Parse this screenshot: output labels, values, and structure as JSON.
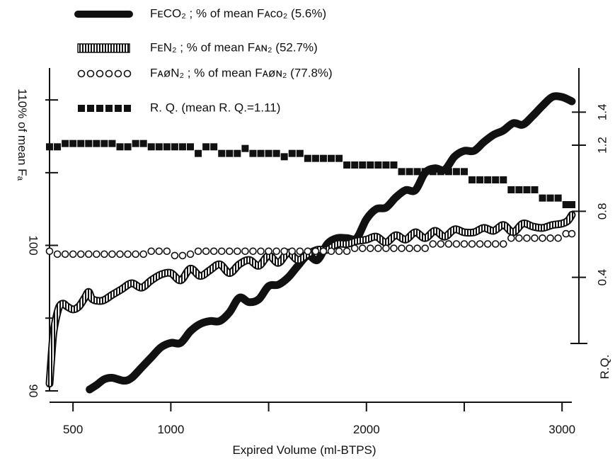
{
  "chart_data": {
    "type": "line",
    "xlabel": "Expired Volume (ml-BTPS)",
    "ylabel": "110% of mean Fₐ",
    "y2label": "R.Q.",
    "xlim": [
      380,
      3050
    ],
    "ylim": [
      90,
      112
    ],
    "y2lim": [
      0,
      1.65
    ],
    "x_ticks": [
      500,
      1000,
      1500,
      2000,
      2500,
      3000
    ],
    "x_tick_labels": [
      "500",
      "1000",
      "",
      "2000",
      "",
      "3000"
    ],
    "y_ticks": [
      90,
      95,
      100,
      105,
      110
    ],
    "y_tick_labels": [
      "90",
      "",
      "100",
      "",
      ""
    ],
    "y2_ticks": [
      0.4,
      0.8,
      1.2,
      1.4
    ],
    "y2_tick_labels": [
      "0.4",
      "0.8",
      "1.2",
      "1.4"
    ],
    "legend": [
      {
        "style": "thick-black",
        "label": "FᴇCO₂ ; % of mean Fᴀᴄᴏ₂  (5.6%)"
      },
      {
        "style": "hatched",
        "label": "FᴇN₂  ; % of mean Fᴀɴ₂  (52.7%)"
      },
      {
        "style": "open-circles",
        "label": "FᴀøN₂ ; % of mean Fᴀøɴ₂ (77.8%)"
      },
      {
        "style": "filled-squares",
        "label": "R. Q.   (mean R. Q.=1.11)"
      }
    ],
    "series": [
      {
        "axis": "left",
        "style": "thick-black",
        "x": [
          585,
          620,
          660,
          700,
          760,
          800,
          850,
          900,
          950,
          1000,
          1050,
          1100,
          1150,
          1200,
          1250,
          1300,
          1350,
          1400,
          1450,
          1500,
          1550,
          1600,
          1650,
          1700,
          1750,
          1800,
          1850,
          1900,
          1950,
          2000,
          2050,
          2100,
          2150,
          2200,
          2250,
          2300,
          2350,
          2400,
          2450,
          2500,
          2550,
          2600,
          2650,
          2700,
          2750,
          2800,
          2850,
          2900,
          2950,
          3000,
          3050
        ],
        "y": [
          90.1,
          90.4,
          90.8,
          90.9,
          90.7,
          90.9,
          91.6,
          92.3,
          93.0,
          93.3,
          93.3,
          94.1,
          94.6,
          94.8,
          94.8,
          95.4,
          96.4,
          96.1,
          96.3,
          97.2,
          97.3,
          97.8,
          98.6,
          99.3,
          99.0,
          100.1,
          100.5,
          100.5,
          100.5,
          101.8,
          102.5,
          102.6,
          103.3,
          103.8,
          103.8,
          105.0,
          105.3,
          105.2,
          106.1,
          106.5,
          106.5,
          107.1,
          107.6,
          107.9,
          108.4,
          108.3,
          108.9,
          109.6,
          110.2,
          110.2,
          109.9
        ]
      },
      {
        "axis": "left",
        "style": "hatched",
        "x": [
          380,
          390,
          400,
          415,
          430,
          450,
          470,
          500,
          530,
          560,
          580,
          600,
          650,
          700,
          750,
          800,
          850,
          900,
          950,
          1000,
          1050,
          1100,
          1150,
          1200,
          1250,
          1300,
          1350,
          1400,
          1450,
          1500,
          1550,
          1600,
          1650,
          1700,
          1750,
          1800,
          1850,
          1900,
          1950,
          2000,
          2050,
          2100,
          2150,
          2200,
          2250,
          2300,
          2350,
          2400,
          2450,
          2500,
          2550,
          2600,
          2650,
          2700,
          2750,
          2800,
          2850,
          2900,
          2950,
          3000,
          3030,
          3050
        ],
        "y": [
          90.5,
          92.4,
          94.0,
          95.1,
          95.8,
          96.0,
          95.8,
          95.6,
          95.8,
          96.4,
          96.8,
          96.3,
          96.2,
          96.6,
          97.0,
          97.4,
          97.1,
          97.6,
          98.0,
          98.1,
          97.6,
          98.4,
          97.9,
          98.3,
          98.7,
          98.1,
          98.7,
          99.0,
          98.6,
          99.3,
          98.8,
          99.5,
          99.0,
          99.4,
          99.7,
          99.7,
          100.1,
          100.1,
          100.3,
          100.4,
          100.6,
          100.2,
          100.7,
          100.4,
          100.9,
          100.5,
          101.0,
          100.6,
          101.1,
          100.9,
          100.9,
          101.2,
          101.0,
          101.4,
          100.9,
          101.5,
          101.3,
          101.2,
          101.4,
          101.5,
          101.7,
          102.1
        ]
      },
      {
        "axis": "left",
        "style": "open-circles",
        "x": [
          380,
          420,
          460,
          500,
          540,
          580,
          620,
          660,
          700,
          740,
          780,
          820,
          860,
          900,
          940,
          980,
          1020,
          1060,
          1100,
          1140,
          1180,
          1220,
          1260,
          1300,
          1340,
          1380,
          1420,
          1460,
          1500,
          1540,
          1580,
          1620,
          1660,
          1700,
          1740,
          1780,
          1820,
          1860,
          1900,
          1940,
          1980,
          2020,
          2060,
          2100,
          2140,
          2180,
          2220,
          2260,
          2300,
          2340,
          2380,
          2420,
          2460,
          2500,
          2540,
          2580,
          2620,
          2660,
          2700,
          2740,
          2780,
          2820,
          2860,
          2900,
          2940,
          2980,
          3020,
          3050
        ],
        "y": [
          99.6,
          99.4,
          99.4,
          99.4,
          99.4,
          99.4,
          99.4,
          99.4,
          99.4,
          99.4,
          99.4,
          99.4,
          99.4,
          99.6,
          99.6,
          99.6,
          99.3,
          99.3,
          99.4,
          99.6,
          99.6,
          99.6,
          99.6,
          99.6,
          99.6,
          99.6,
          99.6,
          99.6,
          99.6,
          99.6,
          99.6,
          99.6,
          99.6,
          99.6,
          99.6,
          99.6,
          99.6,
          99.6,
          99.6,
          99.8,
          99.8,
          99.8,
          99.8,
          99.8,
          99.8,
          99.8,
          99.8,
          99.8,
          99.8,
          100.1,
          100.1,
          100.1,
          100.1,
          100.1,
          100.1,
          100.1,
          100.1,
          100.1,
          100.1,
          100.5,
          100.5,
          100.5,
          100.5,
          100.5,
          100.5,
          100.5,
          100.8,
          100.8
        ]
      },
      {
        "axis": "right",
        "style": "filled-squares",
        "x": [
          380,
          420,
          460,
          500,
          540,
          580,
          620,
          660,
          700,
          740,
          780,
          820,
          860,
          900,
          940,
          980,
          1020,
          1060,
          1100,
          1140,
          1180,
          1220,
          1260,
          1300,
          1340,
          1380,
          1420,
          1460,
          1500,
          1540,
          1580,
          1620,
          1660,
          1700,
          1740,
          1780,
          1820,
          1860,
          1900,
          1940,
          1980,
          2020,
          2060,
          2100,
          2140,
          2180,
          2220,
          2260,
          2300,
          2340,
          2380,
          2420,
          2460,
          2500,
          2540,
          2580,
          2620,
          2660,
          2700,
          2740,
          2780,
          2820,
          2860,
          2900,
          2940,
          2980,
          3020,
          3050
        ],
        "y": [
          1.19,
          1.19,
          1.21,
          1.21,
          1.21,
          1.21,
          1.21,
          1.21,
          1.21,
          1.19,
          1.19,
          1.21,
          1.21,
          1.19,
          1.19,
          1.19,
          1.19,
          1.19,
          1.19,
          1.15,
          1.19,
          1.19,
          1.15,
          1.15,
          1.15,
          1.18,
          1.15,
          1.15,
          1.15,
          1.15,
          1.13,
          1.15,
          1.15,
          1.12,
          1.12,
          1.12,
          1.12,
          1.12,
          1.08,
          1.08,
          1.08,
          1.08,
          1.08,
          1.08,
          1.08,
          1.04,
          1.04,
          1.04,
          1.04,
          1.04,
          1.04,
          1.04,
          1.04,
          1.04,
          0.99,
          0.99,
          0.99,
          0.99,
          0.99,
          0.93,
          0.93,
          0.93,
          0.93,
          0.88,
          0.88,
          0.88,
          0.84,
          0.84
        ]
      }
    ]
  }
}
